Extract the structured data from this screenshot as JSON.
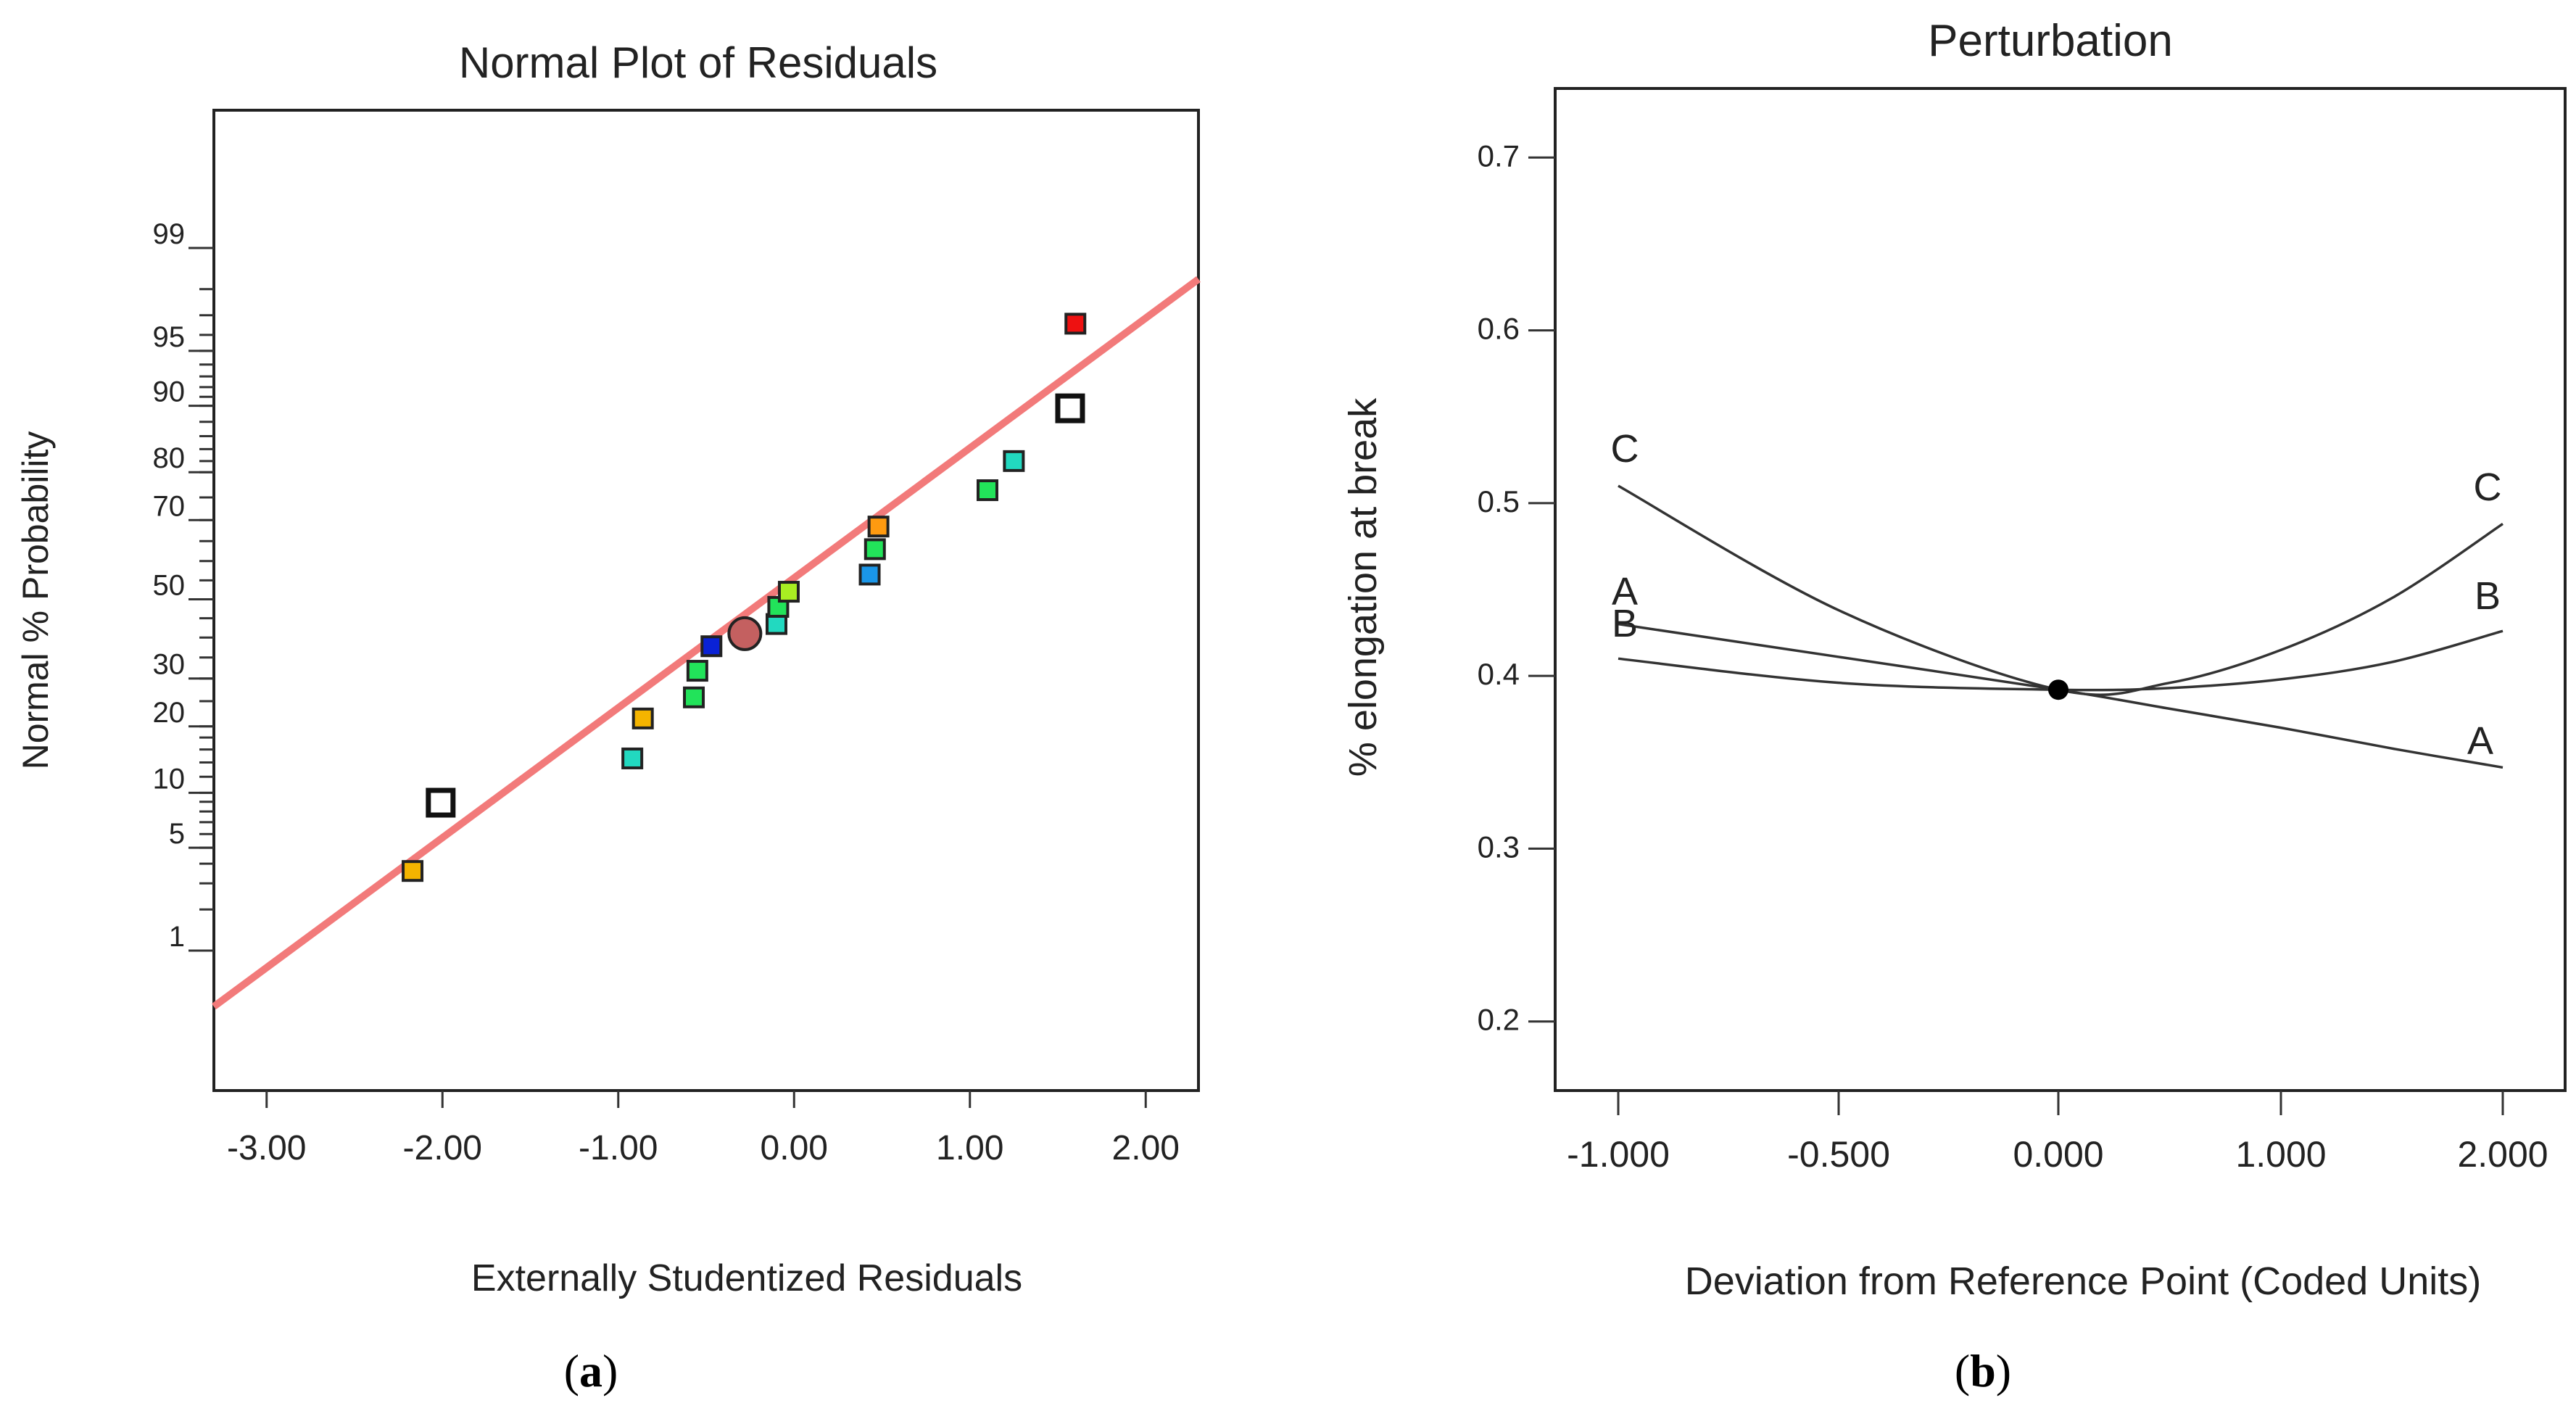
{
  "chart_data": [
    {
      "type": "scatter",
      "title": "Normal Plot of Residuals",
      "xlabel": "Externally Studentized Residuals",
      "ylabel": "Normal % Probability",
      "xlim": [
        -3.3,
        2.3
      ],
      "xticks": [
        -3,
        -2,
        -1,
        0,
        1,
        2
      ],
      "xtick_labels": [
        "-3.00",
        "-2.00",
        "-1.00",
        "0.00",
        "1.00",
        "2.00"
      ],
      "ytick_labels": [
        "99",
        "95",
        "90",
        "80",
        "70",
        "50",
        "30",
        "20",
        "10",
        "5",
        "1"
      ],
      "yticks": [
        99,
        95,
        90,
        80,
        70,
        50,
        30,
        20,
        10,
        5,
        1
      ],
      "minor_ticks": [
        1,
        2,
        3,
        4,
        5,
        6,
        7,
        8,
        9,
        10,
        12,
        14,
        16,
        18,
        20,
        25,
        30,
        35,
        40,
        45,
        50,
        55,
        60,
        65,
        70,
        75,
        80,
        82,
        84,
        86,
        88,
        90,
        91,
        92,
        93,
        94,
        95,
        96,
        97,
        98,
        99
      ],
      "reference_line": {
        "color": "#f27a7a",
        "points": [
          [
            -3.3,
            0.35
          ],
          [
            2.3,
            98.3
          ]
        ]
      },
      "points": [
        {
          "x": -2.17,
          "p": 3.6,
          "color": "#f4b400",
          "style": "filled"
        },
        {
          "x": -2.01,
          "p": 8.9,
          "color": "#ffffff",
          "style": "hollow"
        },
        {
          "x": -0.92,
          "p": 14.6,
          "color": "#22d9c0",
          "style": "filled"
        },
        {
          "x": -0.86,
          "p": 21.5,
          "color": "#f4b400",
          "style": "filled"
        },
        {
          "x": -0.57,
          "p": 25.8,
          "color": "#22e35a",
          "style": "filled"
        },
        {
          "x": -0.55,
          "p": 31.8,
          "color": "#22e35a",
          "style": "filled"
        },
        {
          "x": -0.47,
          "p": 37.8,
          "color": "#0a22d6",
          "style": "filled"
        },
        {
          "x": -0.28,
          "p": 41.0,
          "color": "#c46060",
          "style": "circle"
        },
        {
          "x": -0.1,
          "p": 43.5,
          "color": "#22d9c0",
          "style": "filled"
        },
        {
          "x": -0.09,
          "p": 48.0,
          "color": "#22e35a",
          "style": "filled"
        },
        {
          "x": -0.03,
          "p": 52.0,
          "color": "#a8ee22",
          "style": "filled"
        },
        {
          "x": 0.43,
          "p": 56.5,
          "color": "#1a96e8",
          "style": "filled"
        },
        {
          "x": 0.46,
          "p": 63.0,
          "color": "#22e35a",
          "style": "filled"
        },
        {
          "x": 0.48,
          "p": 68.5,
          "color": "#ff9a10",
          "style": "filled"
        },
        {
          "x": 1.1,
          "p": 76.5,
          "color": "#22e35a",
          "style": "filled"
        },
        {
          "x": 1.25,
          "p": 82.0,
          "color": "#22d9c0",
          "style": "filled"
        },
        {
          "x": 1.57,
          "p": 89.7,
          "color": "#ffffff",
          "style": "hollow"
        },
        {
          "x": 1.6,
          "p": 96.6,
          "color": "#ee1111",
          "style": "filled"
        }
      ],
      "caption": "(a)"
    },
    {
      "type": "line",
      "title": "Perturbation",
      "xlabel": "Deviation from Reference Point (Coded Units)",
      "ylabel": "% elongation at break",
      "xlim": [
        -1.25,
        2.25
      ],
      "ylim": [
        0.16,
        0.74
      ],
      "xticks": [
        -1,
        -0.5,
        0,
        1,
        2
      ],
      "xtick_labels": [
        "-1.000",
        "-0.500",
        "0.000",
        "1.000",
        "2.000"
      ],
      "yticks": [
        0.2,
        0.3,
        0.4,
        0.5,
        0.6,
        0.7
      ],
      "ytick_labels": [
        "0.2",
        "0.3",
        "0.4",
        "0.5",
        "0.6",
        "0.7"
      ],
      "x_axis_note": "tick spacing drawn as rendered in the original (positions -1.000, -0.500, 0.000, 1.000, 2.000 evenly placed)",
      "series": [
        {
          "name": "A",
          "x": [
            -1.0,
            -0.5,
            0.0,
            0.5,
            1.0,
            1.5,
            2.0
          ],
          "y": [
            0.43,
            0.411,
            0.392,
            0.381,
            0.37,
            0.358,
            0.347
          ]
        },
        {
          "name": "B",
          "x": [
            -1.0,
            -0.5,
            0.0,
            0.5,
            1.0,
            1.5,
            2.0
          ],
          "y": [
            0.41,
            0.396,
            0.392,
            0.393,
            0.398,
            0.408,
            0.426
          ]
        },
        {
          "name": "C",
          "x": [
            -1.0,
            -0.5,
            0.0,
            0.5,
            1.0,
            1.5,
            2.0
          ],
          "y": [
            0.51,
            0.438,
            0.392,
            0.396,
            0.415,
            0.445,
            0.488
          ]
        }
      ],
      "curve_labels_left": [
        "C",
        "A",
        "B"
      ],
      "curve_labels_right": [
        "C",
        "B",
        "A"
      ],
      "reference_point": {
        "x": 0.0,
        "y": 0.392
      },
      "caption": "(b)"
    }
  ]
}
